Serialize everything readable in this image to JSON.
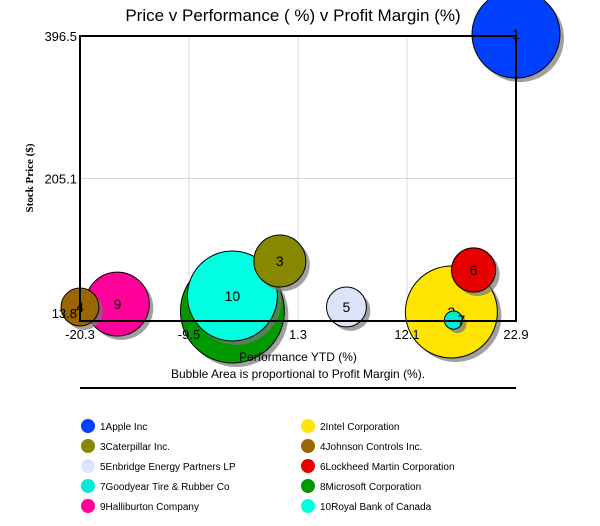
{
  "chart_data": {
    "type": "bubble",
    "title": "Price v Performance ( %) v Profit Margin (%)",
    "xlabel": "Performance YTD (%)",
    "ylabel": "Stock Price ($)",
    "note": "Bubble Area is proportional to Profit Margin (%).",
    "xlim": [
      -20.3,
      22.9
    ],
    "ylim": [
      13.8,
      396.5
    ],
    "xticks": [
      "-20.3",
      "-9.5",
      "1.3",
      "12.1",
      "22.9"
    ],
    "xtick_values": [
      -20.3,
      -9.5,
      1.3,
      12.1,
      22.9
    ],
    "yticks": [
      "13.8",
      "205.1",
      "396.5"
    ],
    "ytick_values": [
      13.8,
      205.1,
      396.5
    ],
    "grid": true,
    "legend_placement": "bottom",
    "series": [
      {
        "id": "1",
        "name": "Apple Inc",
        "x": 22.9,
        "y": 399,
        "margin": 25.8,
        "color": "#0040ff"
      },
      {
        "id": "2",
        "name": "Intel Corporation",
        "x": 16.5,
        "y": 25.9,
        "margin": 28.2,
        "color": "#ffe400"
      },
      {
        "id": "3",
        "name": "Caterpillar Inc.",
        "x": -0.5,
        "y": 94.4,
        "margin": 9.0,
        "color": "#888800"
      },
      {
        "id": "4",
        "name": "Johnson Controls Inc.",
        "x": -20.3,
        "y": 32.6,
        "margin": 4.8,
        "color": "#996600"
      },
      {
        "id": "5",
        "name": "Enbridge Energy Partners LP",
        "x": 6.1,
        "y": 32.6,
        "margin": 5.3,
        "color": "#dde4fa"
      },
      {
        "id": "6",
        "name": "Lockheed Martin Corporation",
        "x": 18.7,
        "y": 82.3,
        "margin": 6.5,
        "color": "#e80000"
      },
      {
        "id": "7",
        "name": "Goodyear Tire & Rubber Co",
        "x": 16.7,
        "y": 15.0,
        "margin": 1.1,
        "color": "#00e8d8"
      },
      {
        "id": "8",
        "name": "Microsoft Corporation",
        "x": -5.2,
        "y": 27.2,
        "margin": 36.0,
        "color": "#009900"
      },
      {
        "id": "9",
        "name": "Halliburton Company",
        "x": -16.6,
        "y": 36.6,
        "margin": 13.6,
        "color": "#ff0099"
      },
      {
        "id": "10",
        "name": "Royal Bank of Canada",
        "x": -5.2,
        "y": 47.4,
        "margin": 27.0,
        "color": "#00ffe0"
      }
    ]
  }
}
